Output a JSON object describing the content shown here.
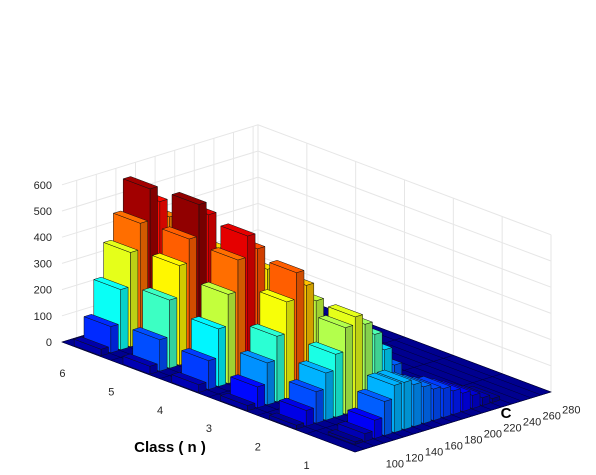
{
  "chart_data": {
    "type": "bar3",
    "xlabel": "Class ( n )",
    "ylabel": "C",
    "zlabel": "",
    "class_ticks": [
      "1",
      "2",
      "3",
      "4",
      "5",
      "6"
    ],
    "c_ticks": [
      "100",
      "120",
      "140",
      "160",
      "180",
      "200",
      "220",
      "240",
      "260",
      "280"
    ],
    "z_ticks": [
      "0",
      "100",
      "200",
      "300",
      "400",
      "500",
      "600"
    ],
    "zlim": [
      0,
      600
    ],
    "c_values": [
      90,
      100,
      110,
      120,
      130,
      140,
      150,
      160,
      170,
      180,
      190,
      200,
      210,
      220,
      230,
      240,
      250,
      260,
      270,
      280
    ],
    "series": [
      {
        "class": 1,
        "values": [
          0,
          10,
          30,
          70,
          130,
          180,
          180,
          160,
          140,
          120,
          110,
          90,
          70,
          50,
          30,
          15,
          0,
          0,
          0,
          0
        ]
      },
      {
        "class": 2,
        "values": [
          15,
          60,
          120,
          180,
          240,
          330,
          360,
          320,
          270,
          200,
          130,
          60,
          20,
          0,
          0,
          0,
          0,
          0,
          0,
          0
        ]
      },
      {
        "class": 3,
        "values": [
          20,
          80,
          160,
          250,
          370,
          470,
          410,
          340,
          250,
          150,
          70,
          20,
          0,
          0,
          0,
          0,
          0,
          0,
          0,
          0
        ]
      },
      {
        "class": 4,
        "values": [
          30,
          110,
          220,
          340,
          460,
          540,
          480,
          390,
          280,
          160,
          70,
          20,
          0,
          0,
          0,
          0,
          0,
          0,
          0,
          0
        ]
      },
      {
        "class": 5,
        "values": [
          30,
          120,
          260,
          380,
          470,
          590,
          540,
          400,
          280,
          150,
          60,
          15,
          0,
          0,
          0,
          0,
          0,
          0,
          0,
          0
        ]
      },
      {
        "class": 6,
        "values": [
          25,
          100,
          230,
          360,
          460,
          580,
          520,
          450,
          320,
          180,
          70,
          20,
          0,
          0,
          0,
          0,
          0,
          0,
          0,
          0
        ]
      }
    ],
    "colormap": "jet",
    "grid": true,
    "background": "#ffffff",
    "floor_color": "#00008f"
  }
}
